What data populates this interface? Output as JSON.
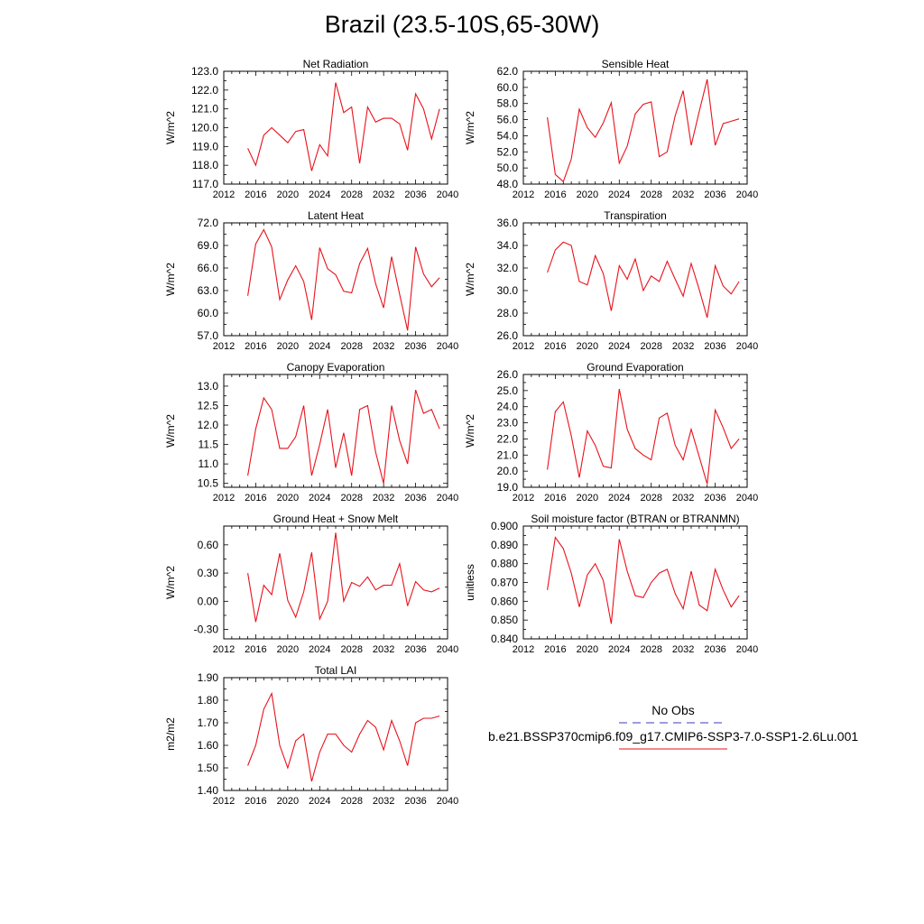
{
  "title": "Brazil (23.5-10S,65-30W)",
  "colors": {
    "series": "#e8121b",
    "obs": "#3b3bbf",
    "axis": "#000000"
  },
  "legend": {
    "obs_label": "No Obs",
    "model_label": "b.e21.BSSP370cmip6.f09_g17.CMIP6-SSP3-7.0-SSP1-2.6Lu.001"
  },
  "chart_data": [
    {
      "type": "line",
      "title": "Net Radiation",
      "ylabel": "W/m^2",
      "xlim": [
        2012,
        2040
      ],
      "ylim": [
        117.0,
        123.0
      ],
      "xticks": [
        2012,
        2016,
        2020,
        2024,
        2028,
        2032,
        2036,
        2040
      ],
      "yticks": [
        "117.0",
        "118.0",
        "119.0",
        "120.0",
        "121.0",
        "122.0",
        "123.0"
      ],
      "x": [
        2015,
        2016,
        2017,
        2018,
        2019,
        2020,
        2021,
        2022,
        2023,
        2024,
        2025,
        2026,
        2027,
        2028,
        2029,
        2030,
        2031,
        2032,
        2033,
        2034,
        2035,
        2036,
        2037,
        2038,
        2039
      ],
      "series": [
        {
          "values": [
            118.9,
            118.0,
            119.6,
            120.0,
            119.6,
            119.2,
            119.8,
            119.9,
            117.7,
            119.1,
            118.5,
            122.4,
            120.8,
            121.1,
            118.1,
            121.1,
            120.3,
            120.5,
            120.5,
            120.2,
            118.8,
            121.8,
            121.0,
            119.4,
            121.0
          ]
        }
      ]
    },
    {
      "type": "line",
      "title": "Sensible Heat",
      "ylabel": "W/m^2",
      "xlim": [
        2012,
        2040
      ],
      "ylim": [
        48.0,
        62.0
      ],
      "xticks": [
        2012,
        2016,
        2020,
        2024,
        2028,
        2032,
        2036,
        2040
      ],
      "yticks": [
        "48.0",
        "50.0",
        "52.0",
        "54.0",
        "56.0",
        "58.0",
        "60.0",
        "62.0"
      ],
      "x": [
        2015,
        2016,
        2017,
        2018,
        2019,
        2020,
        2021,
        2022,
        2023,
        2024,
        2025,
        2026,
        2027,
        2028,
        2029,
        2030,
        2031,
        2032,
        2033,
        2034,
        2035,
        2036,
        2037,
        2038,
        2039
      ],
      "series": [
        {
          "values": [
            56.3,
            49.2,
            48.3,
            51.1,
            57.3,
            55.0,
            53.8,
            55.6,
            58.1,
            50.6,
            52.7,
            56.7,
            57.9,
            58.2,
            51.4,
            52.0,
            56.5,
            59.6,
            52.8,
            57.0,
            61.0,
            52.8,
            55.5,
            55.8,
            56.1
          ]
        }
      ]
    },
    {
      "type": "line",
      "title": "Latent Heat",
      "ylabel": "W/m^2",
      "xlim": [
        2012,
        2040
      ],
      "ylim": [
        57.0,
        72.0
      ],
      "xticks": [
        2012,
        2016,
        2020,
        2024,
        2028,
        2032,
        2036,
        2040
      ],
      "yticks": [
        "57.0",
        "60.0",
        "63.0",
        "66.0",
        "69.0",
        "72.0"
      ],
      "x": [
        2015,
        2016,
        2017,
        2018,
        2019,
        2020,
        2021,
        2022,
        2023,
        2024,
        2025,
        2026,
        2027,
        2028,
        2029,
        2030,
        2031,
        2032,
        2033,
        2034,
        2035,
        2036,
        2037,
        2038,
        2039
      ],
      "series": [
        {
          "values": [
            62.3,
            69.2,
            71.1,
            68.8,
            61.8,
            64.4,
            66.3,
            64.2,
            59.1,
            68.7,
            65.9,
            65.1,
            62.9,
            62.7,
            66.6,
            68.6,
            63.9,
            60.7,
            67.5,
            62.5,
            57.7,
            68.8,
            65.2,
            63.5,
            64.7
          ]
        }
      ]
    },
    {
      "type": "line",
      "title": "Transpiration",
      "ylabel": "W/m^2",
      "xlim": [
        2012,
        2040
      ],
      "ylim": [
        26.0,
        36.0
      ],
      "xticks": [
        2012,
        2016,
        2020,
        2024,
        2028,
        2032,
        2036,
        2040
      ],
      "yticks": [
        "26.0",
        "28.0",
        "30.0",
        "32.0",
        "34.0",
        "36.0"
      ],
      "x": [
        2015,
        2016,
        2017,
        2018,
        2019,
        2020,
        2021,
        2022,
        2023,
        2024,
        2025,
        2026,
        2027,
        2028,
        2029,
        2030,
        2031,
        2032,
        2033,
        2034,
        2035,
        2036,
        2037,
        2038,
        2039
      ],
      "series": [
        {
          "values": [
            31.6,
            33.6,
            34.3,
            34.0,
            30.8,
            30.5,
            33.1,
            31.5,
            28.2,
            32.2,
            31.0,
            32.8,
            30.0,
            31.3,
            30.8,
            32.6,
            31.0,
            29.5,
            32.4,
            30.1,
            27.6,
            32.2,
            30.4,
            29.7,
            30.8
          ]
        }
      ]
    },
    {
      "type": "line",
      "title": "Canopy Evaporation",
      "ylabel": "W/m^2",
      "xlim": [
        2012,
        2040
      ],
      "ylim": [
        10.4,
        13.3
      ],
      "xticks": [
        2012,
        2016,
        2020,
        2024,
        2028,
        2032,
        2036,
        2040
      ],
      "yticks": [
        "10.5",
        "11.0",
        "11.5",
        "12.0",
        "12.5",
        "13.0"
      ],
      "x": [
        2015,
        2016,
        2017,
        2018,
        2019,
        2020,
        2021,
        2022,
        2023,
        2024,
        2025,
        2026,
        2027,
        2028,
        2029,
        2030,
        2031,
        2032,
        2033,
        2034,
        2035,
        2036,
        2037,
        2038,
        2039
      ],
      "series": [
        {
          "values": [
            10.7,
            11.9,
            12.7,
            12.4,
            11.4,
            11.4,
            11.7,
            12.5,
            10.7,
            11.5,
            12.4,
            10.9,
            11.8,
            10.7,
            12.4,
            12.5,
            11.3,
            10.5,
            12.5,
            11.6,
            11.0,
            12.9,
            12.3,
            12.4,
            11.9
          ]
        }
      ]
    },
    {
      "type": "line",
      "title": "Ground Evaporation",
      "ylabel": "W/m^2",
      "xlim": [
        2012,
        2040
      ],
      "ylim": [
        19.0,
        26.0
      ],
      "xticks": [
        2012,
        2016,
        2020,
        2024,
        2028,
        2032,
        2036,
        2040
      ],
      "yticks": [
        "19.0",
        "20.0",
        "21.0",
        "22.0",
        "23.0",
        "24.0",
        "25.0",
        "26.0"
      ],
      "x": [
        2015,
        2016,
        2017,
        2018,
        2019,
        2020,
        2021,
        2022,
        2023,
        2024,
        2025,
        2026,
        2027,
        2028,
        2029,
        2030,
        2031,
        2032,
        2033,
        2034,
        2035,
        2036,
        2037,
        2038,
        2039
      ],
      "series": [
        {
          "values": [
            20.1,
            23.7,
            24.3,
            22.2,
            19.6,
            22.5,
            21.6,
            20.3,
            20.2,
            25.1,
            22.6,
            21.4,
            21.0,
            20.7,
            23.3,
            23.6,
            21.6,
            20.7,
            22.6,
            20.9,
            19.2,
            23.8,
            22.7,
            21.4,
            22.0
          ]
        }
      ]
    },
    {
      "type": "line",
      "title": "Ground Heat + Snow Melt",
      "ylabel": "W/m^2",
      "xlim": [
        2012,
        2040
      ],
      "ylim": [
        -0.4,
        0.8
      ],
      "xticks": [
        2012,
        2016,
        2020,
        2024,
        2028,
        2032,
        2036,
        2040
      ],
      "yticks": [
        "-0.30",
        "0.00",
        "0.30",
        "0.60"
      ],
      "x": [
        2015,
        2016,
        2017,
        2018,
        2019,
        2020,
        2021,
        2022,
        2023,
        2024,
        2025,
        2026,
        2027,
        2028,
        2029,
        2030,
        2031,
        2032,
        2033,
        2034,
        2035,
        2036,
        2037,
        2038,
        2039
      ],
      "series": [
        {
          "values": [
            0.3,
            -0.22,
            0.17,
            0.07,
            0.51,
            0.01,
            -0.17,
            0.1,
            0.52,
            -0.19,
            0.0,
            0.73,
            0.0,
            0.2,
            0.16,
            0.26,
            0.12,
            0.17,
            0.17,
            0.4,
            -0.05,
            0.21,
            0.12,
            0.1,
            0.14
          ]
        }
      ]
    },
    {
      "type": "line",
      "title": "Soil moisture factor (BTRAN or BTRANMN)",
      "ylabel": "unitless",
      "xlim": [
        2012,
        2040
      ],
      "ylim": [
        0.84,
        0.9
      ],
      "xticks": [
        2012,
        2016,
        2020,
        2024,
        2028,
        2032,
        2036,
        2040
      ],
      "yticks": [
        "0.840",
        "0.850",
        "0.860",
        "0.870",
        "0.880",
        "0.890",
        "0.900"
      ],
      "x": [
        2015,
        2016,
        2017,
        2018,
        2019,
        2020,
        2021,
        2022,
        2023,
        2024,
        2025,
        2026,
        2027,
        2028,
        2029,
        2030,
        2031,
        2032,
        2033,
        2034,
        2035,
        2036,
        2037,
        2038,
        2039
      ],
      "series": [
        {
          "values": [
            0.866,
            0.894,
            0.888,
            0.875,
            0.857,
            0.874,
            0.88,
            0.871,
            0.848,
            0.893,
            0.876,
            0.863,
            0.862,
            0.87,
            0.875,
            0.877,
            0.864,
            0.856,
            0.876,
            0.858,
            0.855,
            0.877,
            0.866,
            0.857,
            0.863
          ]
        }
      ]
    },
    {
      "type": "line",
      "title": "Total LAI",
      "ylabel": "m2/m2",
      "xlim": [
        2012,
        2040
      ],
      "ylim": [
        1.4,
        1.9
      ],
      "xticks": [
        2012,
        2016,
        2020,
        2024,
        2028,
        2032,
        2036,
        2040
      ],
      "yticks": [
        "1.40",
        "1.50",
        "1.60",
        "1.70",
        "1.80",
        "1.90"
      ],
      "x": [
        2015,
        2016,
        2017,
        2018,
        2019,
        2020,
        2021,
        2022,
        2023,
        2024,
        2025,
        2026,
        2027,
        2028,
        2029,
        2030,
        2031,
        2032,
        2033,
        2034,
        2035,
        2036,
        2037,
        2038,
        2039
      ],
      "series": [
        {
          "values": [
            1.51,
            1.6,
            1.76,
            1.83,
            1.6,
            1.5,
            1.62,
            1.65,
            1.44,
            1.57,
            1.65,
            1.65,
            1.6,
            1.57,
            1.65,
            1.71,
            1.68,
            1.58,
            1.71,
            1.62,
            1.51,
            1.7,
            1.72,
            1.72,
            1.73
          ]
        }
      ]
    }
  ]
}
